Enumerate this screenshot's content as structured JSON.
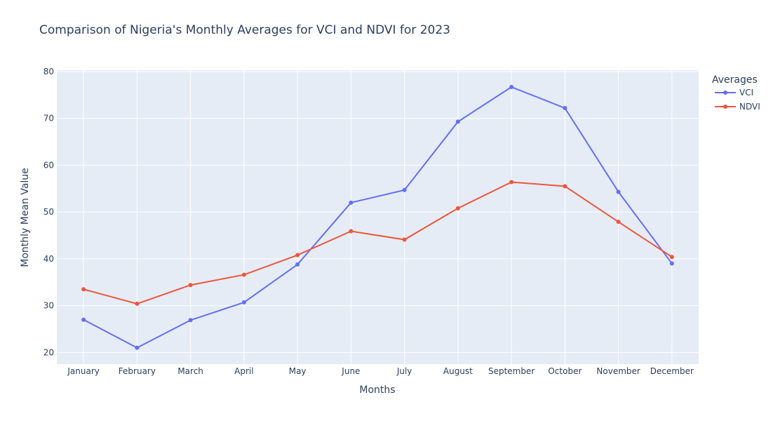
{
  "chart_data": {
    "type": "line",
    "title": "Comparison of Nigeria's Monthly Averages for VCI and NDVI for 2023",
    "xlabel": "Months",
    "ylabel": "Monthly Mean Value",
    "ylim": [
      17.5,
      80.3
    ],
    "yticks": [
      20,
      30,
      40,
      50,
      60,
      70,
      80
    ],
    "grid": true,
    "legend_position": "top-right",
    "legend_title": "Averages",
    "categories": [
      "January",
      "February",
      "March",
      "April",
      "May",
      "June",
      "July",
      "August",
      "September",
      "October",
      "November",
      "December"
    ],
    "series": [
      {
        "name": "VCI",
        "color": "#636efa",
        "values": [
          27.0,
          21.0,
          26.9,
          30.7,
          38.8,
          52.0,
          54.7,
          69.3,
          76.7,
          72.2,
          54.3,
          39.0
        ]
      },
      {
        "name": "NDVI",
        "color": "#ef553b",
        "values": [
          33.5,
          30.4,
          34.4,
          36.6,
          40.8,
          45.9,
          44.1,
          50.8,
          56.4,
          55.5,
          47.9,
          40.4
        ]
      }
    ]
  }
}
